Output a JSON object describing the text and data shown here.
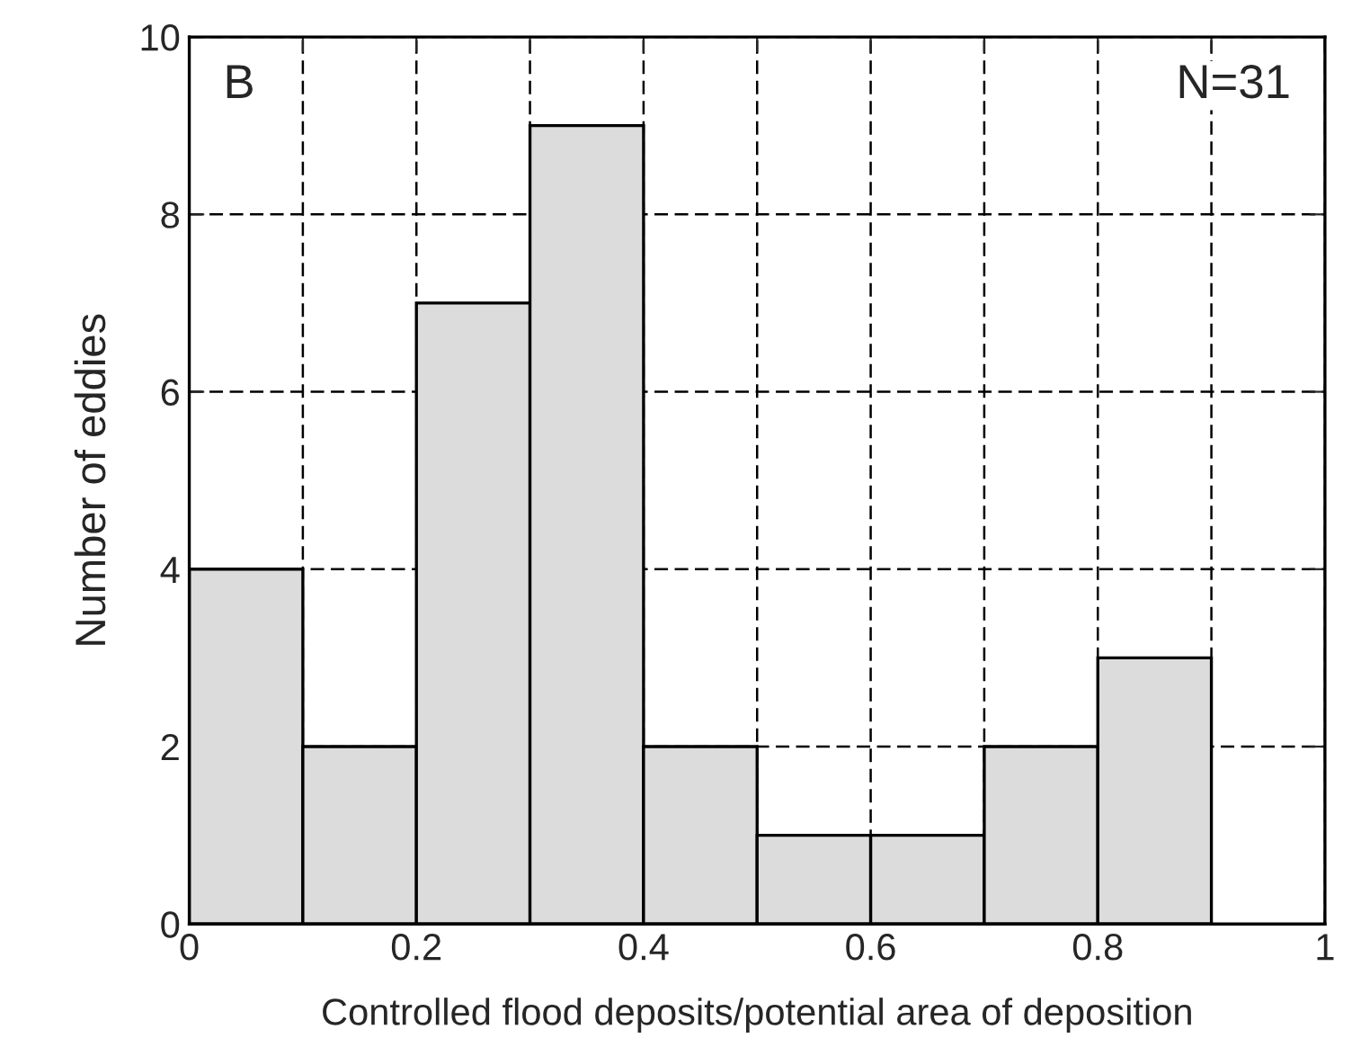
{
  "chart_data": {
    "type": "histogram",
    "bins": [
      0,
      0.1,
      0.2,
      0.3,
      0.4,
      0.5,
      0.6,
      0.7,
      0.8,
      0.9
    ],
    "values": [
      4,
      2,
      7,
      9,
      2,
      1,
      1,
      2,
      3
    ],
    "color": "#dcdcdc",
    "xlabel": "Controlled flood deposits/potential area of deposition",
    "ylabel": "Number of eddies",
    "xlim": [
      0,
      1
    ],
    "ylim": [
      0,
      10
    ],
    "xticks": [
      0,
      {
        "value": 0.1,
        "label": null
      },
      {
        "value": 0.2,
        "label": "0.2"
      },
      {
        "value": 0.3,
        "label": null
      },
      {
        "value": 0.4,
        "label": "0.4"
      },
      {
        "value": 0.5,
        "label": null
      },
      {
        "value": 0.6,
        "label": "0.6"
      },
      {
        "value": 0.7,
        "label": null
      },
      {
        "value": 0.8,
        "label": "0.8"
      },
      {
        "value": 0.9,
        "label": null
      },
      1
    ],
    "yticks": [
      0,
      2,
      4,
      6,
      8,
      10
    ],
    "grid": true,
    "annotations": [
      "B",
      "N=31"
    ]
  }
}
